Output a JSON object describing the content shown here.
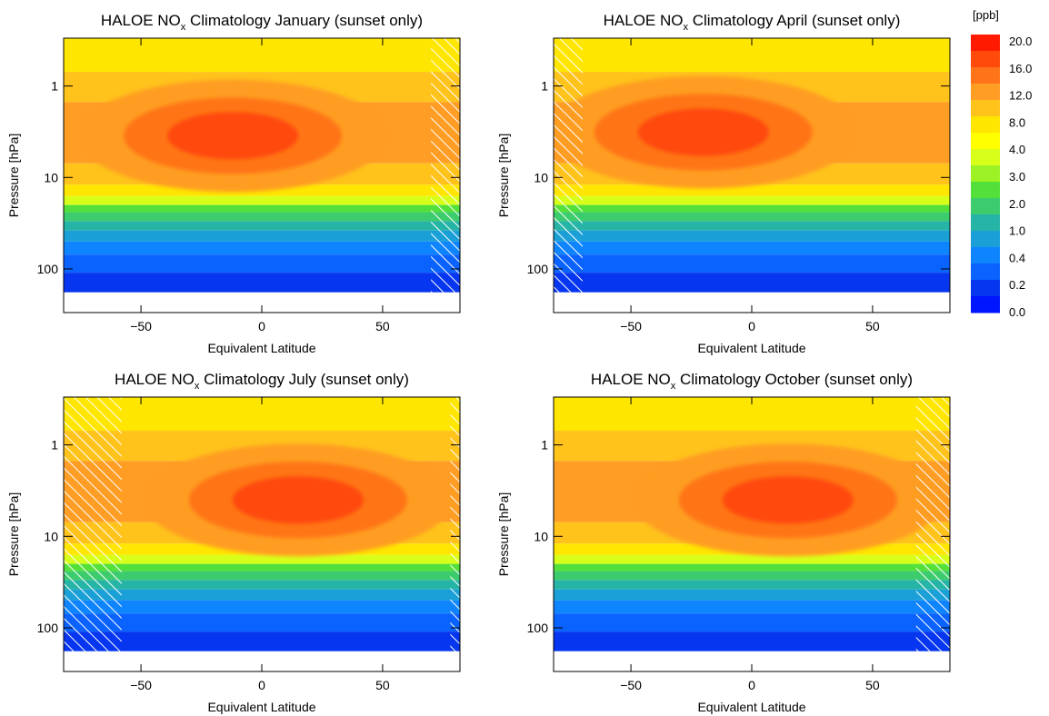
{
  "chart_data": [
    {
      "type": "heatmap",
      "title": "HALOE NOx Climatology January (sunset only)",
      "title_parts": {
        "prefix": "HALOE NO",
        "subscript": "x",
        "suffix": " Climatology January (sunset only)"
      },
      "xlabel": "Equivalent Latitude",
      "ylabel": "Pressure [hPa]",
      "xlim": [
        -82,
        82
      ],
      "ylim": [
        300,
        0.3
      ],
      "yscale": "log",
      "xticks": [
        -50,
        0,
        50
      ],
      "yticks": [
        1,
        10,
        100
      ],
      "peak": {
        "lat": -12,
        "pressure": 3.5,
        "value": 16
      },
      "no_data_hatched_lat_ranges": [
        [
          70,
          82
        ]
      ]
    },
    {
      "type": "heatmap",
      "title": "HALOE NOx Climatology April (sunset only)",
      "title_parts": {
        "prefix": "HALOE NO",
        "subscript": "x",
        "suffix": " Climatology April (sunset only)"
      },
      "xlabel": "Equivalent Latitude",
      "ylabel": "Pressure [hPa]",
      "xlim": [
        -82,
        82
      ],
      "ylim": [
        300,
        0.3
      ],
      "yscale": "log",
      "xticks": [
        -50,
        0,
        50
      ],
      "yticks": [
        1,
        10,
        100
      ],
      "peak": {
        "lat": -20,
        "pressure": 3.2,
        "value": 16
      },
      "no_data_hatched_lat_ranges": [
        [
          -82,
          -70
        ]
      ]
    },
    {
      "type": "heatmap",
      "title": "HALOE NOx Climatology July (sunset only)",
      "title_parts": {
        "prefix": "HALOE NO",
        "subscript": "x",
        "suffix": " Climatology July (sunset only)"
      },
      "xlabel": "Equivalent Latitude",
      "ylabel": "Pressure [hPa]",
      "xlim": [
        -82,
        82
      ],
      "ylim": [
        300,
        0.3
      ],
      "yscale": "log",
      "xticks": [
        -50,
        0,
        50
      ],
      "yticks": [
        1,
        10,
        100
      ],
      "peak": {
        "lat": 15,
        "pressure": 4,
        "value": 16
      },
      "no_data_hatched_lat_ranges": [
        [
          -82,
          -58
        ],
        [
          78,
          82
        ]
      ]
    },
    {
      "type": "heatmap",
      "title": "HALOE NOx Climatology October (sunset only)",
      "title_parts": {
        "prefix": "HALOE NO",
        "subscript": "x",
        "suffix": " Climatology October (sunset only)"
      },
      "xlabel": "Equivalent Latitude",
      "ylabel": "Pressure [hPa]",
      "xlim": [
        -82,
        82
      ],
      "ylim": [
        300,
        0.3
      ],
      "yscale": "log",
      "xticks": [
        -50,
        0,
        50
      ],
      "yticks": [
        1,
        10,
        100
      ],
      "peak": {
        "lat": 15,
        "pressure": 4,
        "value": 14
      },
      "no_data_hatched_lat_ranges": [
        [
          68,
          82
        ]
      ]
    }
  ],
  "colorbar": {
    "unit": "[ppb]",
    "levels": [
      "20.0",
      "16.0",
      "12.0",
      "8.0",
      "4.0",
      "3.0",
      "2.0",
      "1.0",
      "0.4",
      "0.2",
      "0.0"
    ],
    "colors": [
      "#ff1a00",
      "#ff4a0a",
      "#ff7418",
      "#ff9d24",
      "#ffc31c",
      "#ffe600",
      "#ffff00",
      "#d8ff1a",
      "#9cf225",
      "#54e03a",
      "#3ccc6e",
      "#26b4a6",
      "#1aa0d6",
      "#0f84ff",
      "#0a62ff",
      "#0636f0",
      "#0016ff"
    ]
  },
  "colors": {
    "fill_hatch": "#ffffff",
    "missing": "#ffffff"
  }
}
